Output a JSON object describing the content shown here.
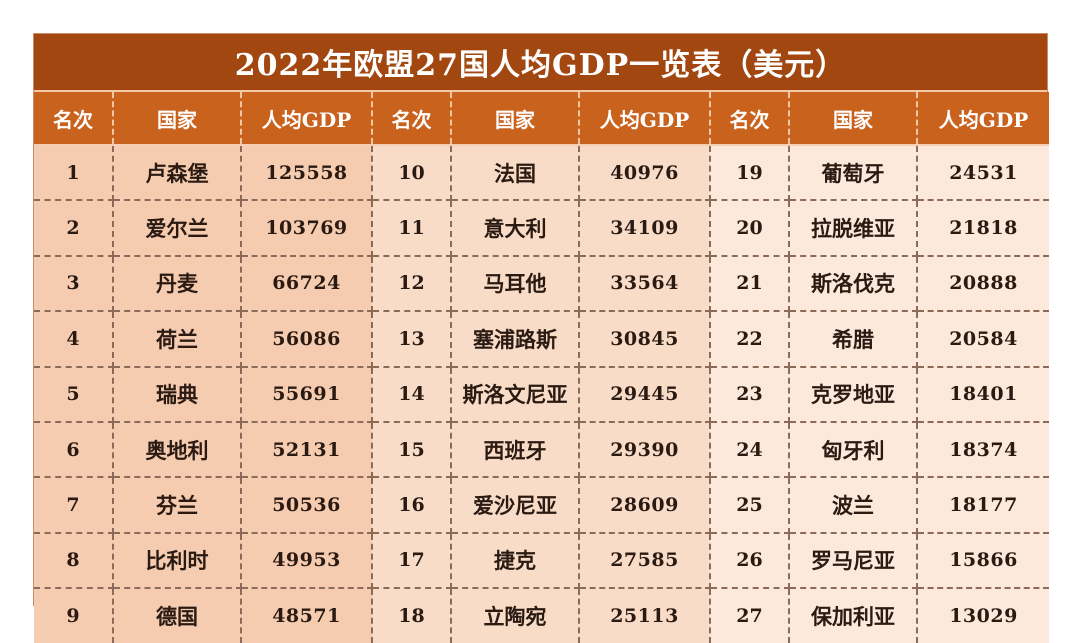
{
  "title": "2022年欧盟27国人均GDP一览表（美元）",
  "header": {
    "rank_label": "名次",
    "country_label": "国家",
    "gdp_label": "人均GDP"
  },
  "rows": [
    [
      {
        "rank": "1",
        "country": "卢森堡",
        "gdp": "125558"
      },
      {
        "rank": "10",
        "country": "法国",
        "gdp": "40976"
      },
      {
        "rank": "19",
        "country": "葡萄牙",
        "gdp": "24531"
      }
    ],
    [
      {
        "rank": "2",
        "country": "爱尔兰",
        "gdp": "103769"
      },
      {
        "rank": "11",
        "country": "意大利",
        "gdp": "34109"
      },
      {
        "rank": "20",
        "country": "拉脱维亚",
        "gdp": "21818"
      }
    ],
    [
      {
        "rank": "3",
        "country": "丹麦",
        "gdp": "66724"
      },
      {
        "rank": "12",
        "country": "马耳他",
        "gdp": "33564"
      },
      {
        "rank": "21",
        "country": "斯洛伐克",
        "gdp": "20888"
      }
    ],
    [
      {
        "rank": "4",
        "country": "荷兰",
        "gdp": "56086"
      },
      {
        "rank": "13",
        "country": "塞浦路斯",
        "gdp": "30845"
      },
      {
        "rank": "22",
        "country": "希腊",
        "gdp": "20584"
      }
    ],
    [
      {
        "rank": "5",
        "country": "瑞典",
        "gdp": "55691"
      },
      {
        "rank": "14",
        "country": "斯洛文尼亚",
        "gdp": "29445"
      },
      {
        "rank": "23",
        "country": "克罗地亚",
        "gdp": "18401"
      }
    ],
    [
      {
        "rank": "6",
        "country": "奥地利",
        "gdp": "52131"
      },
      {
        "rank": "15",
        "country": "西班牙",
        "gdp": "29390"
      },
      {
        "rank": "24",
        "country": "匈牙利",
        "gdp": "18374"
      }
    ],
    [
      {
        "rank": "7",
        "country": "芬兰",
        "gdp": "50536"
      },
      {
        "rank": "16",
        "country": "爱沙尼亚",
        "gdp": "28609"
      },
      {
        "rank": "25",
        "country": "波兰",
        "gdp": "18177"
      }
    ],
    [
      {
        "rank": "8",
        "country": "比利时",
        "gdp": "49953"
      },
      {
        "rank": "17",
        "country": "捷克",
        "gdp": "27585"
      },
      {
        "rank": "26",
        "country": "罗马尼亚",
        "gdp": "15866"
      }
    ],
    [
      {
        "rank": "9",
        "country": "德国",
        "gdp": "48571"
      },
      {
        "rank": "18",
        "country": "立陶宛",
        "gdp": "25113"
      },
      {
        "rank": "27",
        "country": "保加利亚",
        "gdp": "13029"
      }
    ]
  ]
}
